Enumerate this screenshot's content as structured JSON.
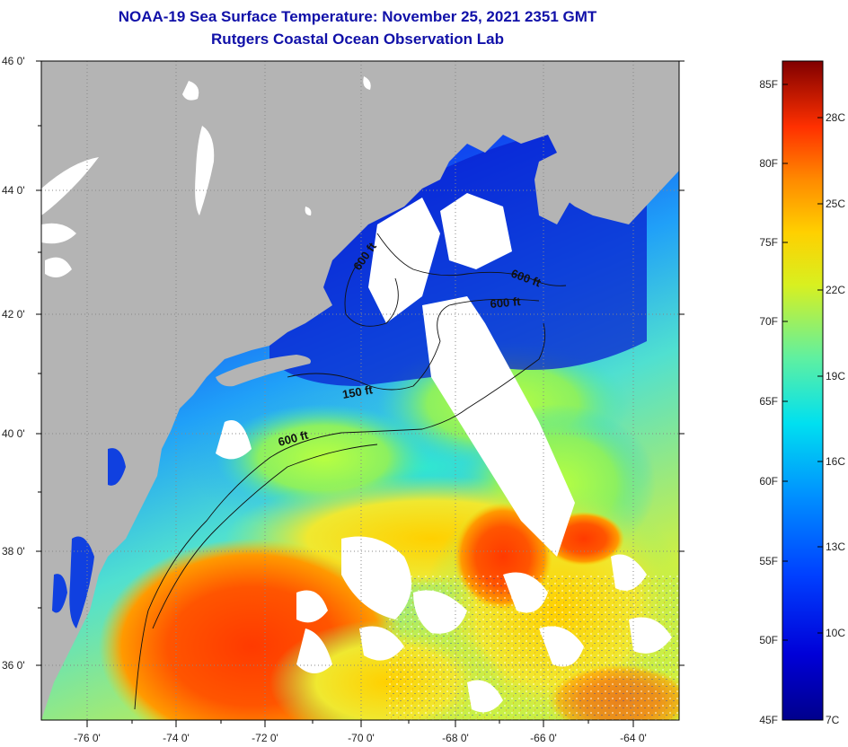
{
  "title": {
    "line1": "NOAA-19 Sea Surface Temperature:  November 25, 2021 2351 GMT",
    "line2": "Rutgers Coastal Ocean Observation Lab"
  },
  "map": {
    "lat_labels": [
      "46 0'",
      "44 0'",
      "42 0'",
      "40 0'",
      "38 0'",
      "36 0'"
    ],
    "lon_labels": [
      "-76 0'",
      "-74 0'",
      "-72 0'",
      "-70 0'",
      "-68 0'",
      "-66 0'",
      "-64 0'"
    ],
    "contour_labels": [
      "600 ft",
      "600 ft",
      "600 ft",
      "150 ft",
      "600 ft"
    ]
  },
  "colorbar": {
    "fahrenheit_labels": [
      "85F",
      "80F",
      "75F",
      "70F",
      "65F",
      "60F",
      "55F",
      "50F",
      "45F"
    ],
    "celsius_labels": [
      "28C",
      "25C",
      "22C",
      "19C",
      "16C",
      "13C",
      "10C",
      "7C"
    ]
  },
  "colors": {
    "title": "#1010a8",
    "land": "#b4b4b4",
    "cloud": "#ffffff"
  }
}
